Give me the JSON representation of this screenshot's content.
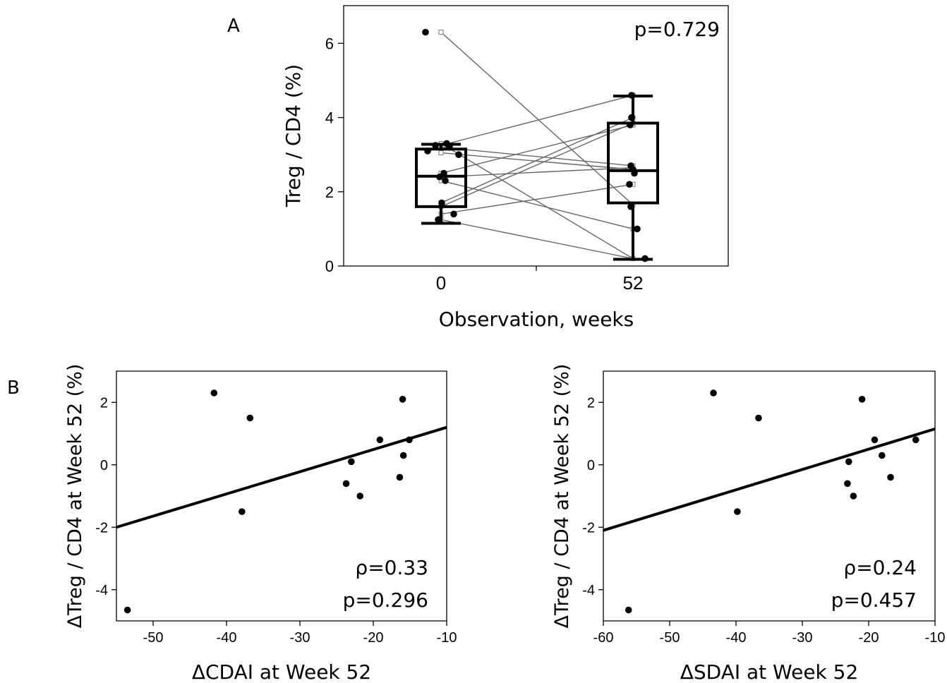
{
  "panels": {
    "a_label": "A",
    "b_label": "B"
  },
  "chart_data": [
    {
      "type": "boxplot",
      "ylabel": "Treg / CD4 (%)",
      "xlabel": "Observation, weeks",
      "categories": [
        "0",
        "52"
      ],
      "yticks": [
        "0",
        "2",
        "4",
        "6"
      ],
      "ylim": [
        0,
        7
      ],
      "annotation": "p=0.729",
      "boxes": [
        {
          "category": "0",
          "whisker_low": 1.15,
          "q1": 1.6,
          "median": 2.42,
          "q3": 3.15,
          "whisker_high": 3.28
        },
        {
          "category": "52",
          "whisker_low": 0.18,
          "q1": 1.7,
          "median": 2.57,
          "q3": 3.85,
          "whisker_high": 4.58
        }
      ],
      "paired": [
        [
          6.3,
          1.65
        ],
        [
          3.3,
          0.2
        ],
        [
          3.25,
          4.6
        ],
        [
          3.2,
          2.7
        ],
        [
          3.05,
          2.6
        ],
        [
          2.5,
          3.8
        ],
        [
          2.4,
          2.65
        ],
        [
          2.3,
          1.0
        ],
        [
          1.7,
          4.0
        ],
        [
          1.6,
          3.85
        ],
        [
          1.4,
          2.2
        ],
        [
          1.25,
          0.2
        ]
      ],
      "dots": [
        {
          "cat": 0,
          "y": 6.3
        },
        {
          "cat": 0,
          "y": 3.3
        },
        {
          "cat": 0,
          "y": 3.25
        },
        {
          "cat": 0,
          "y": 3.2
        },
        {
          "cat": 0,
          "y": 3.1
        },
        {
          "cat": 0,
          "y": 3.0
        },
        {
          "cat": 0,
          "y": 2.5
        },
        {
          "cat": 0,
          "y": 2.4
        },
        {
          "cat": 0,
          "y": 2.3
        },
        {
          "cat": 0,
          "y": 1.7
        },
        {
          "cat": 0,
          "y": 1.4
        },
        {
          "cat": 0,
          "y": 1.25
        },
        {
          "cat": 1,
          "y": 4.6
        },
        {
          "cat": 1,
          "y": 4.0
        },
        {
          "cat": 1,
          "y": 3.8
        },
        {
          "cat": 1,
          "y": 2.7
        },
        {
          "cat": 1,
          "y": 2.6
        },
        {
          "cat": 1,
          "y": 2.5
        },
        {
          "cat": 1,
          "y": 2.2
        },
        {
          "cat": 1,
          "y": 1.6
        },
        {
          "cat": 1,
          "y": 1.0
        },
        {
          "cat": 1,
          "y": 0.2
        }
      ]
    },
    {
      "type": "scatter",
      "xlabel": "ΔCDAI at Week 52",
      "ylabel": "ΔTreg / CD4 at Week 52 (%)",
      "xlim": [
        -55,
        -10
      ],
      "ylim": [
        -5,
        3
      ],
      "xticks": [
        "-50",
        "-40",
        "-30",
        "-20",
        "-10"
      ],
      "yticks": [
        "-4",
        "-2",
        "0",
        "2"
      ],
      "annotation_rho": "ρ=0.33",
      "annotation_p": "p=0.296",
      "fit": {
        "x1": -55,
        "y1": -2.0,
        "x2": -10,
        "y2": 1.2
      },
      "x": [
        -53.5,
        -41.7,
        -36.8,
        -37.9,
        -23.0,
        -23.7,
        -21.8,
        -19.1,
        -16.0,
        -15.9,
        -16.4,
        -15.1
      ],
      "y": [
        -4.65,
        2.3,
        1.5,
        -1.5,
        0.1,
        -0.6,
        -1.0,
        0.8,
        2.1,
        0.3,
        -0.4,
        0.8
      ]
    },
    {
      "type": "scatter",
      "xlabel": "ΔSDAI at Week 52",
      "ylabel": "ΔTreg / CD4 at Week 52 (%)",
      "xlim": [
        -60,
        -10
      ],
      "ylim": [
        -5,
        3
      ],
      "xticks": [
        "-60",
        "-50",
        "-40",
        "-30",
        "-20",
        "-10"
      ],
      "yticks": [
        "-4",
        "-2",
        "0",
        "2"
      ],
      "annotation_rho": "ρ=0.24",
      "annotation_p": "p=0.457",
      "fit": {
        "x1": -60,
        "y1": -2.1,
        "x2": -10,
        "y2": 1.15
      },
      "x": [
        -56.2,
        -43.4,
        -36.6,
        -39.8,
        -23.0,
        -23.2,
        -22.3,
        -19.1,
        -21.0,
        -18.0,
        -16.7,
        -12.9
      ],
      "y": [
        -4.65,
        2.3,
        1.5,
        -1.5,
        0.1,
        -0.6,
        -1.0,
        0.8,
        2.1,
        0.3,
        -0.4,
        0.8
      ]
    }
  ]
}
